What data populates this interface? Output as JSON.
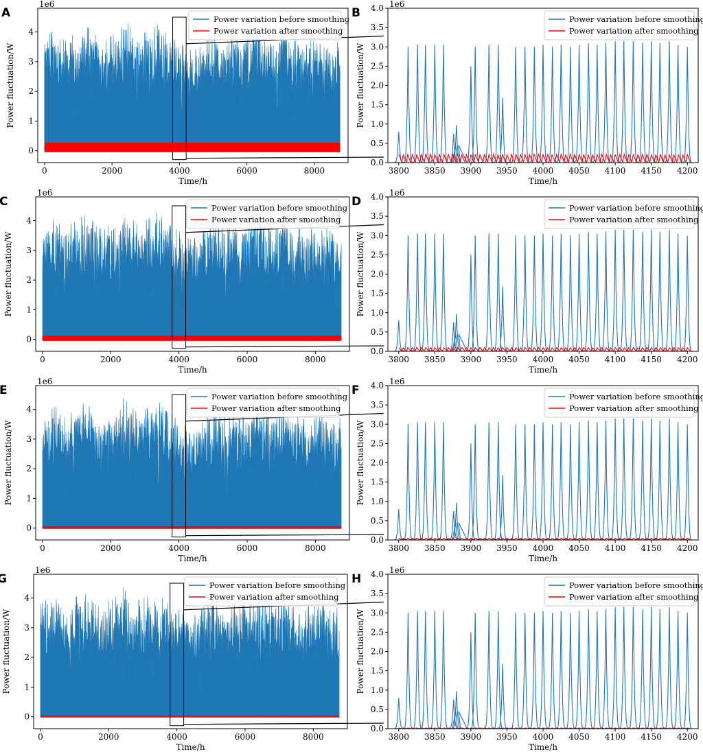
{
  "figure": {
    "axis_unit_label": "1e6",
    "legend": [
      "Power variation before smoothing",
      "Power variation after smoothing"
    ],
    "colors": {
      "before": "#1f77b4",
      "after": "#ff0000",
      "axes": "#000000"
    }
  },
  "chart_data": [
    {
      "panel": "A",
      "type": "area",
      "view": "full",
      "title": "",
      "xlabel": "Time/h",
      "ylabel": "Power fluctuation/W",
      "y_scale": "1e6",
      "xlim": [
        -200,
        9000
      ],
      "ylim": [
        -0.4,
        4.8
      ],
      "xticks": [
        0,
        2000,
        4000,
        6000,
        8000
      ],
      "yticks": [
        0,
        1,
        2,
        3,
        4
      ],
      "zoom_box": {
        "x": [
          3800,
          4200
        ],
        "y": [
          -0.3,
          4.5
        ]
      },
      "series": [
        {
          "name": "Power variation before smoothing",
          "peak_envelope_e6": [
            3.6,
            3.8,
            3.9,
            3.5,
            3.7,
            3.8,
            4.0,
            3.9,
            3.6,
            3.5,
            3.7,
            3.8,
            4.2,
            3.9,
            3.7,
            3.8,
            3.9,
            4.1,
            3.8,
            3.6,
            3.5,
            3.3,
            3.2,
            3.3,
            3.5,
            3.9,
            3.7,
            3.6,
            3.8,
            3.5,
            3.7,
            3.9,
            4.0,
            3.8,
            3.6,
            3.7,
            3.8,
            3.5,
            3.6,
            3.4,
            3.7,
            3.8,
            3.6,
            3.3,
            3.6
          ]
        },
        {
          "name": "Power variation after smoothing",
          "band_e6": [
            -0.05,
            0.27
          ]
        }
      ]
    },
    {
      "panel": "B",
      "type": "line",
      "view": "zoom",
      "title": "",
      "xlabel": "Time/h",
      "ylabel": "Power fluctuation/W",
      "y_scale": "1e6",
      "xlim": [
        3785,
        4215
      ],
      "ylim": [
        0,
        4.0
      ],
      "xticks": [
        3800,
        3850,
        3900,
        3950,
        4000,
        4050,
        4100,
        4150,
        4200
      ],
      "yticks": [
        0.0,
        0.5,
        1.0,
        1.5,
        2.0,
        2.5,
        3.0,
        3.5,
        4.0
      ],
      "series": [
        {
          "name": "Power variation before smoothing",
          "peaks": [
            [
              3800,
              0.8
            ],
            [
              3813,
              3.0
            ],
            [
              3826,
              3.05
            ],
            [
              3837,
              3.05
            ],
            [
              3850,
              3.05
            ],
            [
              3862,
              3.05
            ],
            [
              3876,
              0.75
            ],
            [
              3880,
              0.97
            ],
            [
              3900,
              2.5
            ],
            [
              3906,
              3.0
            ],
            [
              3925,
              3.05
            ],
            [
              3938,
              3.05
            ],
            [
              3944,
              1.68
            ],
            [
              3962,
              3.0
            ],
            [
              3975,
              3.0
            ],
            [
              3988,
              3.0
            ],
            [
              4000,
              3.05
            ],
            [
              4013,
              3.0
            ],
            [
              4025,
              3.05
            ],
            [
              4038,
              3.0
            ],
            [
              4050,
              3.05
            ],
            [
              4063,
              3.1
            ],
            [
              4075,
              3.05
            ],
            [
              4087,
              3.1
            ],
            [
              4100,
              3.15
            ],
            [
              4112,
              3.15
            ],
            [
              4125,
              3.15
            ],
            [
              4138,
              3.1
            ],
            [
              4150,
              3.15
            ],
            [
              4162,
              3.1
            ],
            [
              4175,
              3.15
            ],
            [
              4187,
              3.05
            ],
            [
              4200,
              3.0
            ]
          ]
        },
        {
          "name": "Power variation after smoothing",
          "amplitude_e6": 0.22
        }
      ]
    },
    {
      "panel": "C",
      "type": "area",
      "view": "full",
      "title": "",
      "xlabel": "Time/h",
      "ylabel": "Power fluctuation/W",
      "y_scale": "1e6",
      "xlim": [
        -200,
        9000
      ],
      "ylim": [
        -0.4,
        4.8
      ],
      "xticks": [
        0,
        2000,
        4000,
        6000,
        8000
      ],
      "yticks": [
        0,
        1,
        2,
        3,
        4
      ],
      "zoom_box": {
        "x": [
          3800,
          4200
        ],
        "y": [
          -0.3,
          4.5
        ]
      },
      "series": [
        {
          "name": "Power variation before smoothing",
          "peak_envelope_e6": [
            3.6,
            3.8,
            3.9,
            3.5,
            3.7,
            3.8,
            4.0,
            3.9,
            3.6,
            3.5,
            3.7,
            3.8,
            4.2,
            3.9,
            3.7,
            3.8,
            3.9,
            4.1,
            3.8,
            3.6,
            3.5,
            3.3,
            3.2,
            3.3,
            3.5,
            3.9,
            3.7,
            3.6,
            3.8,
            3.5,
            3.7,
            3.9,
            4.0,
            3.8,
            3.6,
            3.7,
            3.8,
            3.5,
            3.6,
            3.4,
            3.7,
            3.8,
            3.6,
            3.3,
            3.6
          ]
        },
        {
          "name": "Power variation after smoothing",
          "band_e6": [
            -0.05,
            0.12
          ]
        }
      ]
    },
    {
      "panel": "D",
      "type": "line",
      "view": "zoom",
      "title": "",
      "xlabel": "Time/h",
      "ylabel": "Power fluctuation/W",
      "y_scale": "1e6",
      "xlim": [
        3785,
        4215
      ],
      "ylim": [
        0,
        4.0
      ],
      "xticks": [
        3800,
        3850,
        3900,
        3950,
        4000,
        4050,
        4100,
        4150,
        4200
      ],
      "yticks": [
        0.0,
        0.5,
        1.0,
        1.5,
        2.0,
        2.5,
        3.0,
        3.5,
        4.0
      ],
      "series": [
        {
          "name": "Power variation before smoothing",
          "peaks": [
            [
              3800,
              0.8
            ],
            [
              3813,
              3.0
            ],
            [
              3826,
              3.05
            ],
            [
              3837,
              3.05
            ],
            [
              3850,
              3.05
            ],
            [
              3862,
              3.05
            ],
            [
              3876,
              0.75
            ],
            [
              3880,
              0.97
            ],
            [
              3900,
              2.5
            ],
            [
              3906,
              3.0
            ],
            [
              3925,
              3.05
            ],
            [
              3938,
              3.05
            ],
            [
              3944,
              1.68
            ],
            [
              3962,
              3.0
            ],
            [
              3975,
              3.0
            ],
            [
              3988,
              3.0
            ],
            [
              4000,
              3.05
            ],
            [
              4013,
              3.0
            ],
            [
              4025,
              3.05
            ],
            [
              4038,
              3.0
            ],
            [
              4050,
              3.05
            ],
            [
              4063,
              3.1
            ],
            [
              4075,
              3.05
            ],
            [
              4087,
              3.1
            ],
            [
              4100,
              3.15
            ],
            [
              4112,
              3.15
            ],
            [
              4125,
              3.15
            ],
            [
              4138,
              3.1
            ],
            [
              4150,
              3.15
            ],
            [
              4162,
              3.1
            ],
            [
              4175,
              3.15
            ],
            [
              4187,
              3.05
            ],
            [
              4200,
              3.0
            ]
          ]
        },
        {
          "name": "Power variation after smoothing",
          "amplitude_e6": 0.1
        }
      ]
    },
    {
      "panel": "E",
      "type": "area",
      "view": "full",
      "title": "",
      "xlabel": "Time/h",
      "ylabel": "Power fluctuation/W",
      "y_scale": "1e6",
      "xlim": [
        -200,
        9000
      ],
      "ylim": [
        -0.4,
        4.8
      ],
      "xticks": [
        0,
        2000,
        4000,
        6000,
        8000
      ],
      "yticks": [
        0,
        1,
        2,
        3,
        4
      ],
      "zoom_box": {
        "x": [
          3800,
          4200
        ],
        "y": [
          -0.3,
          4.5
        ]
      },
      "series": [
        {
          "name": "Power variation before smoothing",
          "peak_envelope_e6": [
            3.6,
            3.8,
            3.9,
            3.5,
            3.7,
            3.8,
            4.0,
            3.9,
            3.6,
            3.5,
            3.7,
            3.8,
            4.2,
            3.9,
            3.7,
            3.8,
            3.9,
            4.1,
            3.8,
            3.6,
            3.5,
            3.3,
            3.2,
            3.3,
            3.5,
            3.9,
            3.7,
            3.6,
            3.8,
            3.5,
            3.7,
            3.9,
            4.0,
            3.8,
            3.6,
            3.7,
            3.8,
            3.5,
            3.6,
            3.4,
            3.7,
            3.8,
            3.6,
            3.3,
            3.6
          ]
        },
        {
          "name": "Power variation after smoothing",
          "band_e6": [
            -0.02,
            0.06
          ]
        }
      ]
    },
    {
      "panel": "F",
      "type": "line",
      "view": "zoom",
      "title": "",
      "xlabel": "Time/h",
      "ylabel": "Power fluctuation/W",
      "y_scale": "1e6",
      "xlim": [
        3785,
        4215
      ],
      "ylim": [
        0,
        4.0
      ],
      "xticks": [
        3800,
        3850,
        3900,
        3950,
        4000,
        4050,
        4100,
        4150,
        4200
      ],
      "yticks": [
        0.0,
        0.5,
        1.0,
        1.5,
        2.0,
        2.5,
        3.0,
        3.5,
        4.0
      ],
      "series": [
        {
          "name": "Power variation before smoothing",
          "peaks": [
            [
              3800,
              0.8
            ],
            [
              3813,
              3.0
            ],
            [
              3826,
              3.05
            ],
            [
              3837,
              3.05
            ],
            [
              3850,
              3.05
            ],
            [
              3862,
              3.05
            ],
            [
              3876,
              0.75
            ],
            [
              3880,
              0.97
            ],
            [
              3900,
              2.5
            ],
            [
              3906,
              3.0
            ],
            [
              3925,
              3.05
            ],
            [
              3938,
              3.05
            ],
            [
              3944,
              1.68
            ],
            [
              3962,
              3.0
            ],
            [
              3975,
              3.0
            ],
            [
              3988,
              3.0
            ],
            [
              4000,
              3.05
            ],
            [
              4013,
              3.0
            ],
            [
              4025,
              3.05
            ],
            [
              4038,
              3.0
            ],
            [
              4050,
              3.05
            ],
            [
              4063,
              3.1
            ],
            [
              4075,
              3.05
            ],
            [
              4087,
              3.1
            ],
            [
              4100,
              3.15
            ],
            [
              4112,
              3.15
            ],
            [
              4125,
              3.15
            ],
            [
              4138,
              3.1
            ],
            [
              4150,
              3.15
            ],
            [
              4162,
              3.1
            ],
            [
              4175,
              3.15
            ],
            [
              4187,
              3.05
            ],
            [
              4200,
              3.0
            ]
          ]
        },
        {
          "name": "Power variation after smoothing",
          "amplitude_e6": 0.05
        }
      ]
    },
    {
      "panel": "G",
      "type": "area",
      "view": "full",
      "title": "",
      "xlabel": "Time/h",
      "ylabel": "Power fluctuation/W",
      "y_scale": "1e6",
      "xlim": [
        -200,
        9000
      ],
      "ylim": [
        -0.4,
        4.8
      ],
      "xticks": [
        0,
        2000,
        4000,
        6000,
        8000
      ],
      "yticks": [
        0,
        1,
        2,
        3,
        4
      ],
      "zoom_box": {
        "x": [
          3800,
          4200
        ],
        "y": [
          -0.3,
          4.5
        ]
      },
      "series": [
        {
          "name": "Power variation before smoothing",
          "peak_envelope_e6": [
            3.6,
            3.8,
            3.9,
            3.5,
            3.7,
            3.8,
            4.0,
            3.9,
            3.6,
            3.5,
            3.7,
            3.8,
            4.2,
            3.9,
            3.7,
            3.8,
            3.9,
            4.1,
            3.8,
            3.6,
            3.5,
            3.3,
            3.2,
            3.3,
            3.5,
            3.9,
            3.7,
            3.6,
            3.8,
            3.5,
            3.7,
            3.9,
            4.0,
            3.8,
            3.6,
            3.7,
            3.8,
            3.5,
            3.6,
            3.4,
            3.7,
            3.8,
            3.6,
            3.3,
            3.6
          ]
        },
        {
          "name": "Power variation after smoothing",
          "band_e6": [
            -0.01,
            0.03
          ]
        }
      ]
    },
    {
      "panel": "H",
      "type": "line",
      "view": "zoom",
      "title": "",
      "xlabel": "Time/h",
      "ylabel": "Power fluctuation/W",
      "y_scale": "1e6",
      "xlim": [
        3785,
        4215
      ],
      "ylim": [
        0,
        4.0
      ],
      "xticks": [
        3800,
        3850,
        3900,
        3950,
        4000,
        4050,
        4100,
        4150,
        4200
      ],
      "yticks": [
        0.0,
        0.5,
        1.0,
        1.5,
        2.0,
        2.5,
        3.0,
        3.5,
        4.0
      ],
      "series": [
        {
          "name": "Power variation before smoothing",
          "peaks": [
            [
              3800,
              0.8
            ],
            [
              3813,
              3.0
            ],
            [
              3826,
              3.05
            ],
            [
              3837,
              3.05
            ],
            [
              3850,
              3.05
            ],
            [
              3862,
              3.05
            ],
            [
              3876,
              0.75
            ],
            [
              3880,
              0.97
            ],
            [
              3900,
              2.5
            ],
            [
              3906,
              3.0
            ],
            [
              3925,
              3.05
            ],
            [
              3938,
              3.05
            ],
            [
              3944,
              1.68
            ],
            [
              3962,
              3.0
            ],
            [
              3975,
              3.0
            ],
            [
              3988,
              3.0
            ],
            [
              4000,
              3.05
            ],
            [
              4013,
              3.0
            ],
            [
              4025,
              3.05
            ],
            [
              4038,
              3.0
            ],
            [
              4050,
              3.05
            ],
            [
              4063,
              3.1
            ],
            [
              4075,
              3.05
            ],
            [
              4087,
              3.1
            ],
            [
              4100,
              3.15
            ],
            [
              4112,
              3.15
            ],
            [
              4125,
              3.15
            ],
            [
              4138,
              3.1
            ],
            [
              4150,
              3.15
            ],
            [
              4162,
              3.1
            ],
            [
              4175,
              3.15
            ],
            [
              4187,
              3.05
            ],
            [
              4200,
              3.0
            ]
          ]
        },
        {
          "name": "Power variation after smoothing",
          "amplitude_e6": 0.02
        }
      ]
    }
  ]
}
